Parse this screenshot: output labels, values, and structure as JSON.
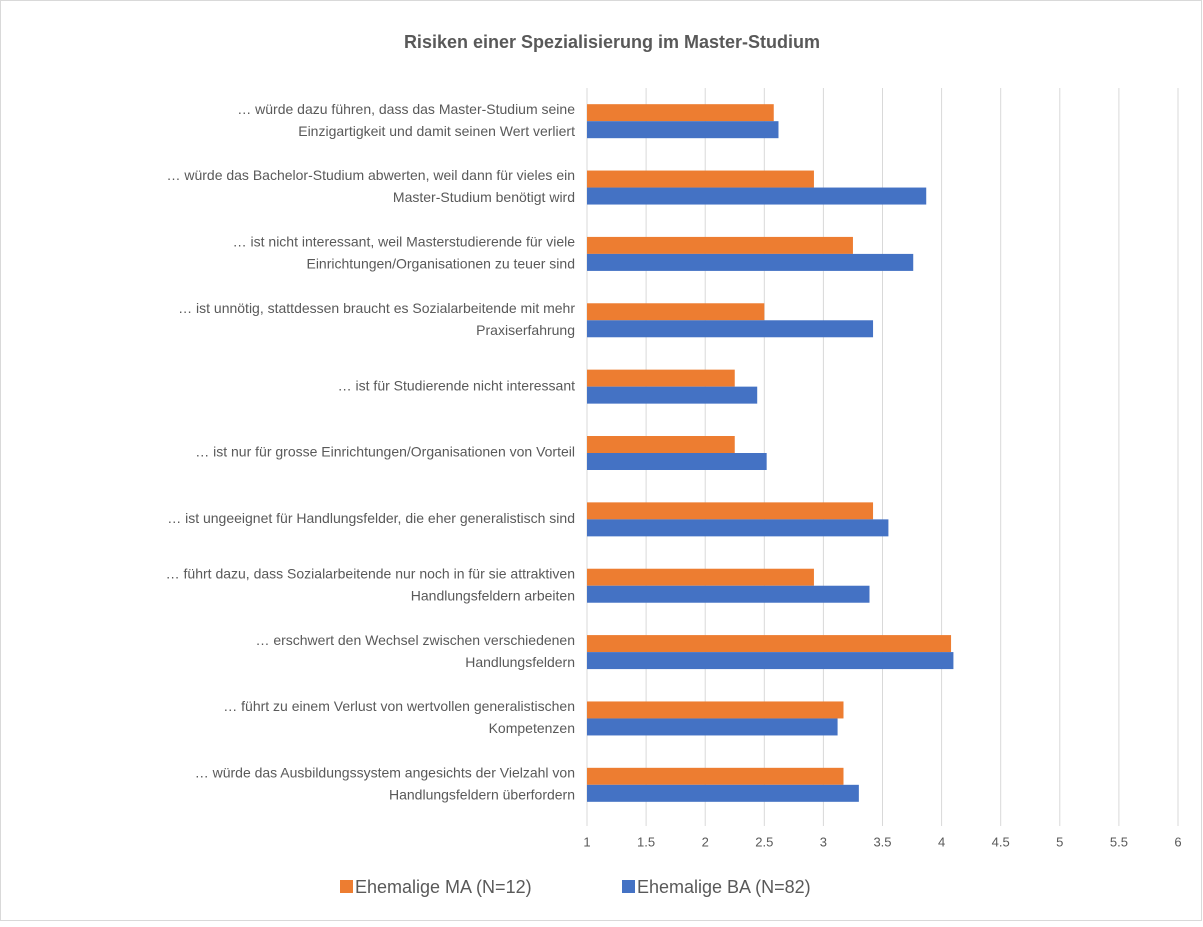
{
  "chart_data": {
    "type": "bar",
    "orientation": "horizontal",
    "title": "Risiken einer Spezialisierung im Master-Studium",
    "categories": [
      [
        "… würde dazu führen, dass das Master-Studium seine",
        "Einzigartigkeit und damit seinen Wert verliert"
      ],
      [
        "… würde das Bachelor-Studium abwerten, weil dann für vieles ein",
        "Master-Studium benötigt wird"
      ],
      [
        "… ist nicht interessant, weil Masterstudierende für viele",
        "Einrichtungen/Organisationen zu teuer sind"
      ],
      [
        "… ist unnötig, stattdessen braucht es Sozialarbeitende mit mehr",
        "Praxiserfahrung"
      ],
      [
        "… ist für Studierende nicht interessant"
      ],
      [
        "… ist nur für grosse Einrichtungen/Organisationen von Vorteil"
      ],
      [
        "… ist ungeeignet für Handlungsfelder, die eher generalistisch sind"
      ],
      [
        "… führt dazu, dass Sozialarbeitende nur noch in für sie attraktiven",
        "Handlungsfeldern arbeiten"
      ],
      [
        "… erschwert den Wechsel zwischen verschiedenen",
        "Handlungsfeldern"
      ],
      [
        "… führt zu einem Verlust von wertvollen generalistischen",
        "Kompetenzen"
      ],
      [
        "… würde das Ausbildungssystem angesichts der Vielzahl von",
        "Handlungsfeldern überfordern"
      ]
    ],
    "series": [
      {
        "name": "Ehemalige MA (N=12)",
        "color": "#ed7d31",
        "values": [
          2.58,
          2.92,
          3.25,
          2.5,
          2.25,
          2.25,
          3.42,
          2.92,
          4.08,
          3.17,
          3.17
        ]
      },
      {
        "name": "Ehemalige  BA (N=82)",
        "color": "#4472c4",
        "values": [
          2.62,
          3.87,
          3.76,
          3.42,
          2.44,
          2.52,
          3.55,
          3.39,
          4.1,
          3.12,
          3.3
        ]
      }
    ],
    "xlim": [
      1,
      6
    ],
    "xticks": [
      1,
      1.5,
      2,
      2.5,
      3,
      3.5,
      4,
      4.5,
      5,
      5.5,
      6
    ],
    "grid": true,
    "legend": "bottom"
  }
}
